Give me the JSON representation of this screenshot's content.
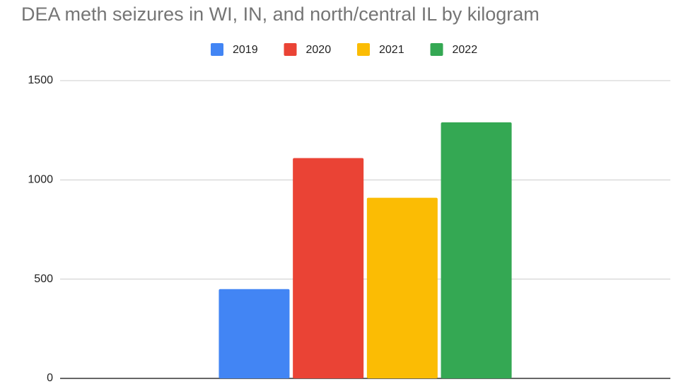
{
  "chart_data": {
    "type": "bar",
    "title": "DEA meth seizures in WI, IN, and north/central IL by kilogram",
    "categories": [
      null
    ],
    "series": [
      {
        "name": "2019",
        "color": "#4285f4",
        "values": [
          450
        ]
      },
      {
        "name": "2020",
        "color": "#ea4335",
        "values": [
          1110
        ]
      },
      {
        "name": "2021",
        "color": "#fbbc04",
        "values": [
          910
        ]
      },
      {
        "name": "2022",
        "color": "#34a853",
        "values": [
          1290
        ]
      }
    ],
    "ylim": [
      0,
      1500
    ],
    "yticks": [
      0,
      500,
      1000,
      1500
    ],
    "grid": true,
    "legend": "top"
  }
}
